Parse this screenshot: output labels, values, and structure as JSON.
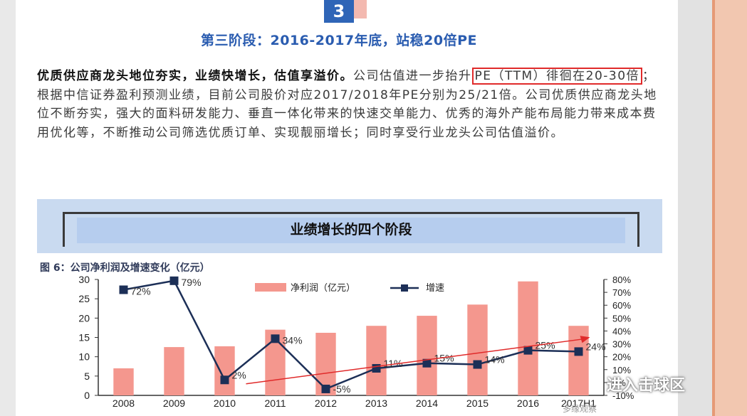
{
  "section_number": "3",
  "section_title": "第三阶段：2016-2017年底，站稳20倍PE",
  "paragraph": {
    "bold_lead": "优质供应商龙头地位夯实，业绩快增长，估值享溢价。",
    "text_1": "公司估值进一步抬升",
    "boxed": "PE（TTM）徘徊在20-30倍",
    "text_2": "；根据中信证券盈利预测业绩，目前公司股价对应2017/2018年PE分别为25/21倍。公司优质供应商龙头地位不断夯实，强大的面料研发能力、垂直一体化带来的快速交单能力、优秀的海外产能布局能力带来成本费用优化等，不断推动公司筛选优质订单、实现靓丽增长；同时享受行业龙头公司估值溢价。"
  },
  "banner_title": "业绩增长的四个阶段",
  "figure_title": "图 6：公司净利润及增速变化（亿元）",
  "watermark": "进入击球区",
  "watermark_small": "多缘观察",
  "colors": {
    "bar": "#f4978e",
    "line": "#1c2f57",
    "arrow": "#e02a2a",
    "accent": "#2a5cb0"
  },
  "chart_data": {
    "type": "bar+line",
    "categories": [
      "2008",
      "2009",
      "2010",
      "2011",
      "2012",
      "2013",
      "2014",
      "2015",
      "2016",
      "2017H1"
    ],
    "series": [
      {
        "name": "净利润（亿元）",
        "type": "bar",
        "axis": "left",
        "values": [
          7,
          12.5,
          12.7,
          17,
          16.2,
          18,
          20.6,
          23.5,
          29.5,
          18
        ]
      },
      {
        "name": "增速",
        "type": "line",
        "axis": "right",
        "values": [
          72,
          79,
          2,
          34,
          -5,
          11,
          15,
          14,
          25,
          24
        ],
        "labels": [
          "72%",
          "79%",
          "2%",
          "34%",
          "-5%",
          "11%",
          "15%",
          "14%",
          "25%",
          "24%"
        ]
      }
    ],
    "ylim_left": [
      0,
      30
    ],
    "yticks_left": [
      "0",
      "5",
      "10",
      "15",
      "20",
      "25",
      "30"
    ],
    "ylim_right": [
      -10,
      80
    ],
    "yticks_right": [
      "-10%",
      "0%",
      "10%",
      "20%",
      "30%",
      "40%",
      "50%",
      "60%",
      "70%",
      "80%"
    ],
    "legend": "top"
  }
}
